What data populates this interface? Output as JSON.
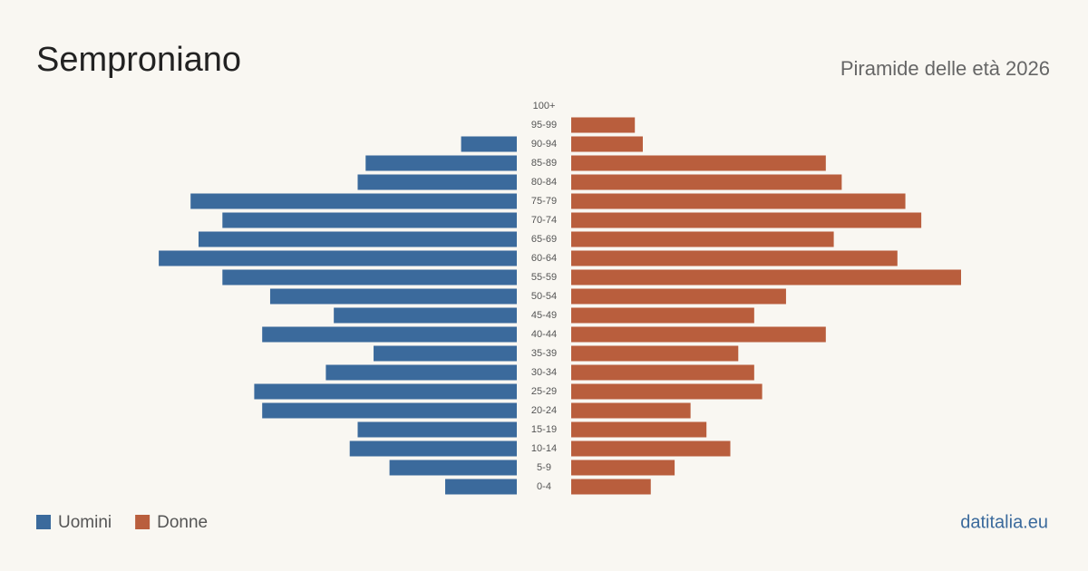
{
  "chart_data": {
    "type": "pyramid",
    "title": "Semproniano",
    "subtitle": "Piramide delle età 2026",
    "source": "datitalia.eu",
    "categories": [
      "100+",
      "95-99",
      "90-94",
      "85-89",
      "80-84",
      "75-79",
      "70-74",
      "65-69",
      "60-64",
      "55-59",
      "50-54",
      "45-49",
      "40-44",
      "35-39",
      "30-34",
      "25-29",
      "20-24",
      "15-19",
      "10-14",
      "5-9",
      "0-4"
    ],
    "series": [
      {
        "name": "Uomini",
        "color": "#3b6a9c",
        "values": [
          0,
          0,
          7,
          19,
          20,
          41,
          37,
          40,
          45,
          37,
          31,
          23,
          32,
          18,
          24,
          33,
          32,
          20,
          21,
          16,
          9
        ]
      },
      {
        "name": "Donne",
        "color": "#b95e3d",
        "values": [
          0,
          8,
          9,
          32,
          34,
          42,
          44,
          33,
          41,
          49,
          27,
          23,
          32,
          21,
          23,
          24,
          15,
          17,
          20,
          13,
          10
        ]
      }
    ]
  }
}
